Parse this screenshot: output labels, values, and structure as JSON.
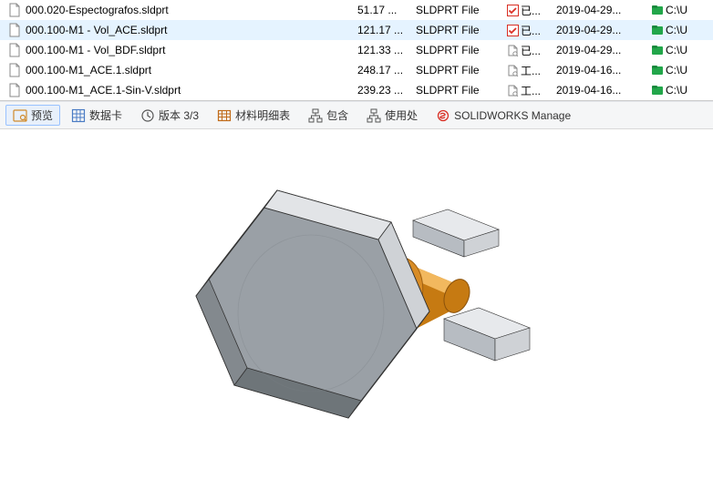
{
  "file_list": {
    "rows": [
      {
        "name": "000.020-Espectografos.sldprt",
        "size": "51.17 ...",
        "type": "SLDPRT File",
        "status_icon": "checked",
        "status": "已...",
        "date": "2019-04-29...",
        "path": "C:\\U",
        "selected": false
      },
      {
        "name": "000.100-M1 - Vol_ACE.sldprt",
        "size": "121.17 ...",
        "type": "SLDPRT File",
        "status_icon": "checked",
        "status": "已...",
        "date": "2019-04-29...",
        "path": "C:\\U",
        "selected": true
      },
      {
        "name": "000.100-M1 - Vol_BDF.sldprt",
        "size": "121.33 ...",
        "type": "SLDPRT File",
        "status_icon": "doc",
        "status": "已...",
        "date": "2019-04-29...",
        "path": "C:\\U",
        "selected": false
      },
      {
        "name": "000.100-M1_ACE.1.sldprt",
        "size": "248.17 ...",
        "type": "SLDPRT File",
        "status_icon": "doc",
        "status": "工...",
        "date": "2019-04-16...",
        "path": "C:\\U",
        "selected": false
      },
      {
        "name": "000.100-M1_ACE.1-Sin-V.sldprt",
        "size": "239.23 ...",
        "type": "SLDPRT File",
        "status_icon": "doc",
        "status": "工...",
        "date": "2019-04-16...",
        "path": "C:\\U",
        "selected": false
      }
    ]
  },
  "toolbar": {
    "tabs": [
      {
        "icon": "preview-icon",
        "label": "预览",
        "active": true
      },
      {
        "icon": "datagrid-icon",
        "label": "数据卡",
        "active": false
      },
      {
        "icon": "clock-icon",
        "label": "版本 3/3",
        "active": false
      },
      {
        "icon": "table-icon",
        "label": "材料明细表",
        "active": false
      },
      {
        "icon": "tree-icon",
        "label": "包含",
        "active": false
      },
      {
        "icon": "usage-icon",
        "label": "使用处",
        "active": false
      },
      {
        "icon": "swmanage-icon",
        "label": "SOLIDWORKS Manage",
        "active": false
      }
    ]
  },
  "preview_model": {
    "description": "hex-bolt-head-with-brass-shaft-and-two-rectangular-clamps",
    "hex_color": "#9aa0a6",
    "hex_light": "#cfd2d6",
    "hex_dark": "#6e7579",
    "brass_color": "#c67a12",
    "brass_light": "#f2b85e",
    "clamp_light": "#e7e9ec",
    "clamp_dark": "#b7bcc2",
    "outline": "#333333"
  },
  "colors": {
    "row_selected_bg": "#e5f3ff",
    "toolbar_bg": "#f5f6f7",
    "green": "#22a64a",
    "red_check": "#d93025"
  }
}
